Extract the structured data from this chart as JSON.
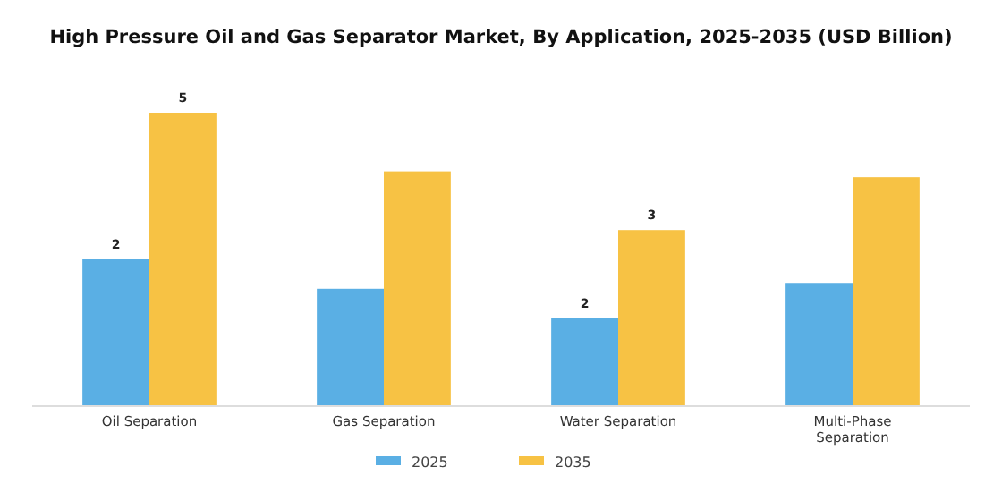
{
  "chart_data": {
    "type": "bar",
    "title": "High Pressure Oil and Gas Separator Market, By Application, 2025-2035 (USD Billion)",
    "categories": [
      "Oil Separation",
      "Gas Separation",
      "Water Separation",
      "Multi-Phase Separation"
    ],
    "series": [
      {
        "name": "2025",
        "color": "#5aafe4",
        "values": [
          2.5,
          2.0,
          1.5,
          2.1
        ],
        "value_labels": [
          "2",
          null,
          "2",
          null
        ]
      },
      {
        "name": "2035",
        "color": "#f7c244",
        "values": [
          5.0,
          4.0,
          3.0,
          3.9
        ],
        "value_labels": [
          "5",
          null,
          "3",
          null
        ]
      }
    ],
    "legend": "bottom"
  }
}
